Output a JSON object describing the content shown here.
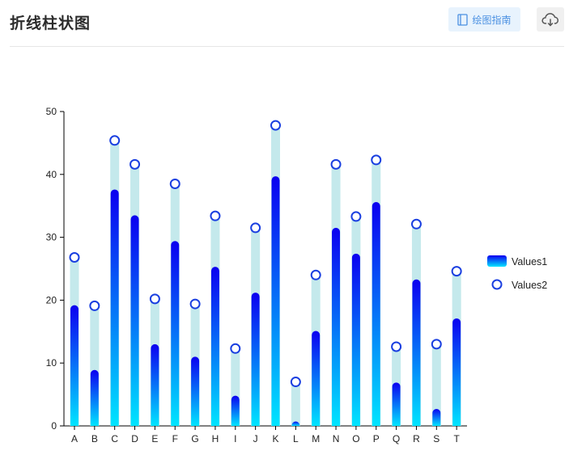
{
  "header": {
    "title": "折线柱状图",
    "guide_label": "绘图指南",
    "guide_icon": "book-icon",
    "download_icon": "cloud-download-icon"
  },
  "colors": {
    "bar_top": "#0b00f0",
    "bar_bottom": "#00e5ff",
    "bar_background": "#c4e9ec",
    "marker_stroke": "#1a3fe0",
    "axis": "#000000",
    "guide_bg": "#e8f3fd",
    "guide_text": "#4a90e2"
  },
  "chart_data": {
    "type": "bar",
    "categories": [
      "A",
      "B",
      "C",
      "D",
      "E",
      "F",
      "G",
      "H",
      "I",
      "J",
      "K",
      "L",
      "M",
      "N",
      "O",
      "P",
      "Q",
      "R",
      "S",
      "T"
    ],
    "series": [
      {
        "name": "Values1",
        "type": "bar",
        "values": [
          19.2,
          8.9,
          37.6,
          33.5,
          13.0,
          29.4,
          11.0,
          25.3,
          4.8,
          21.2,
          39.7,
          0.7,
          15.1,
          31.5,
          27.4,
          35.6,
          6.9,
          23.3,
          2.7,
          17.1
        ]
      },
      {
        "name": "Values2",
        "type": "marker",
        "values": [
          26.8,
          19.1,
          45.4,
          41.6,
          20.2,
          38.5,
          19.4,
          33.4,
          12.3,
          31.5,
          47.8,
          7.0,
          24.0,
          41.6,
          33.3,
          42.3,
          12.6,
          32.1,
          13.0,
          24.6
        ]
      }
    ],
    "ylim": [
      0,
      50
    ],
    "yticks": [
      0,
      10,
      20,
      30,
      40,
      50
    ],
    "legend": "right",
    "grid": false
  }
}
